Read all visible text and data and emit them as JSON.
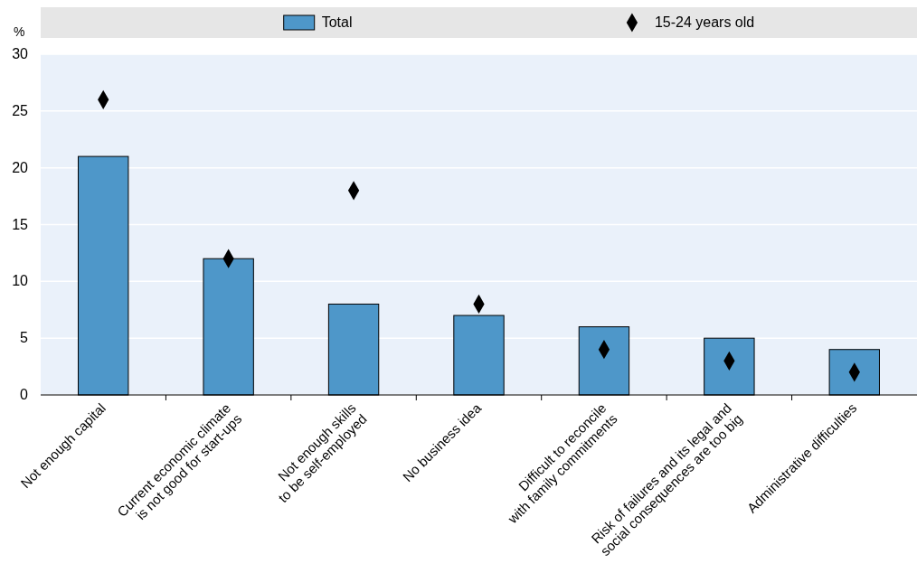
{
  "chart_data": {
    "type": "bar",
    "ylabel": "%",
    "categories": [
      "Not enough capital",
      "Current economic climate\nis not good for start-ups",
      "Not enough skills\nto be self-employed",
      "No business idea",
      "Difficult to reconcile\nwith family commitments",
      "Risk of failures and its legal and\nsocial consequences are too big",
      "Administrative difficulties"
    ],
    "series": [
      {
        "name": "Total",
        "color": "#4e97c9",
        "values": [
          21,
          12,
          8,
          7,
          6,
          5,
          4
        ]
      },
      {
        "name": "15-24 years old",
        "type": "scatter",
        "color": "#000000",
        "marker": "diamond",
        "values": [
          26,
          12,
          18,
          8,
          4,
          3,
          2
        ]
      }
    ],
    "ylim": [
      0,
      30
    ],
    "yticks": [
      0,
      5,
      10,
      15,
      20,
      25,
      30
    ],
    "grid": "y",
    "legend": "top"
  }
}
